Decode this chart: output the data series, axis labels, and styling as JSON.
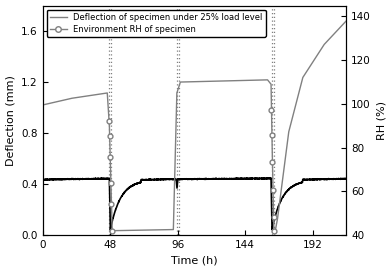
{
  "xlabel": "Time (h)",
  "ylabel_left": "Deflection (mm)",
  "ylabel_right": "RH (%)",
  "xlim": [
    0,
    216
  ],
  "ylim_left": [
    0.0,
    1.8
  ],
  "ylim_right": [
    40,
    145
  ],
  "xticks": [
    0,
    48,
    96,
    144,
    192
  ],
  "yticks_left": [
    0.0,
    0.4,
    0.8,
    1.2,
    1.6
  ],
  "yticks_right": [
    40,
    60,
    80,
    100,
    120,
    140
  ],
  "vline_pairs": [
    [
      47.5,
      49.0
    ],
    [
      95.5,
      97.0
    ],
    [
      163.0,
      164.5
    ]
  ],
  "legend_deflection": "Deflection of specimen under 25% load level",
  "legend_rh": "Environment RH of specimen"
}
